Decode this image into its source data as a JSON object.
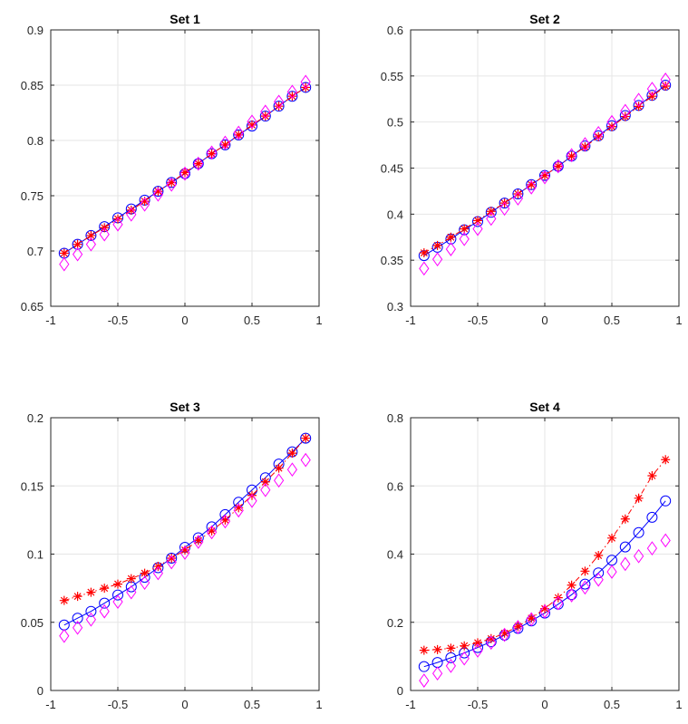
{
  "colors": {
    "series1": "#0000ff",
    "series2": "#ff0000",
    "series3": "#ff00ff",
    "grid": "#e6e6e6",
    "axis": "#262626"
  },
  "chart_data": [
    {
      "type": "line",
      "title": "Set 1",
      "xlabel": "",
      "ylabel": "",
      "xlim": [
        -1,
        1
      ],
      "ylim": [
        0.65,
        0.9
      ],
      "xticks": [
        -1,
        -0.5,
        0,
        0.5,
        1
      ],
      "xtick_labels": [
        "-1",
        "-0.5",
        "0",
        "0.5",
        "1"
      ],
      "yticks": [
        0.65,
        0.7,
        0.75,
        0.8,
        0.85,
        0.9
      ],
      "ytick_labels": [
        "0.65",
        "0.7",
        "0.75",
        "0.8",
        "0.85",
        "0.9"
      ],
      "grid": true,
      "x": [
        -0.9,
        -0.8,
        -0.7,
        -0.6,
        -0.5,
        -0.4,
        -0.3,
        -0.2,
        -0.1,
        0,
        0.1,
        0.2,
        0.3,
        0.4,
        0.5,
        0.6,
        0.7,
        0.8,
        0.9
      ],
      "series": [
        {
          "marker": "circle",
          "line": "solid",
          "color": "#0000ff",
          "values": [
            0.698,
            0.706,
            0.714,
            0.722,
            0.73,
            0.738,
            0.746,
            0.754,
            0.762,
            0.77,
            0.779,
            0.788,
            0.796,
            0.805,
            0.813,
            0.822,
            0.831,
            0.84,
            0.848
          ]
        },
        {
          "marker": "asterisk",
          "line": "dashdot",
          "color": "#ff0000",
          "values": [
            0.698,
            0.706,
            0.714,
            0.721,
            0.729,
            0.737,
            0.745,
            0.754,
            0.762,
            0.771,
            0.779,
            0.788,
            0.796,
            0.805,
            0.814,
            0.822,
            0.831,
            0.84,
            0.848
          ]
        },
        {
          "marker": "diamond",
          "line": "none",
          "color": "#ff00ff",
          "values": [
            0.688,
            0.697,
            0.706,
            0.715,
            0.724,
            0.733,
            0.742,
            0.751,
            0.76,
            0.77,
            0.779,
            0.789,
            0.798,
            0.807,
            0.817,
            0.826,
            0.835,
            0.844,
            0.853
          ]
        }
      ]
    },
    {
      "type": "line",
      "title": "Set 2",
      "xlabel": "",
      "ylabel": "",
      "xlim": [
        -1,
        1
      ],
      "ylim": [
        0.3,
        0.6
      ],
      "xticks": [
        -1,
        -0.5,
        0,
        0.5,
        1
      ],
      "xtick_labels": [
        "-1",
        "-0.5",
        "0",
        "0.5",
        "1"
      ],
      "yticks": [
        0.3,
        0.35,
        0.4,
        0.45,
        0.5,
        0.55,
        0.6
      ],
      "ytick_labels": [
        "0.3",
        "0.35",
        "0.4",
        "0.45",
        "0.5",
        "0.55",
        "0.6"
      ],
      "grid": true,
      "x": [
        -0.9,
        -0.8,
        -0.7,
        -0.6,
        -0.5,
        -0.4,
        -0.3,
        -0.2,
        -0.1,
        0,
        0.1,
        0.2,
        0.3,
        0.4,
        0.5,
        0.6,
        0.7,
        0.8,
        0.9
      ],
      "series": [
        {
          "marker": "circle",
          "line": "solid",
          "color": "#0000ff",
          "values": [
            0.355,
            0.364,
            0.373,
            0.383,
            0.392,
            0.402,
            0.412,
            0.422,
            0.432,
            0.442,
            0.452,
            0.463,
            0.474,
            0.485,
            0.496,
            0.507,
            0.518,
            0.529,
            0.54
          ]
        },
        {
          "marker": "asterisk",
          "line": "dashdot",
          "color": "#ff0000",
          "values": [
            0.358,
            0.366,
            0.375,
            0.384,
            0.393,
            0.403,
            0.412,
            0.422,
            0.432,
            0.442,
            0.452,
            0.463,
            0.473,
            0.484,
            0.495,
            0.506,
            0.517,
            0.528,
            0.539
          ]
        },
        {
          "marker": "diamond",
          "line": "none",
          "color": "#ff00ff",
          "values": [
            0.341,
            0.351,
            0.362,
            0.373,
            0.384,
            0.395,
            0.406,
            0.417,
            0.429,
            0.44,
            0.452,
            0.464,
            0.476,
            0.488,
            0.5,
            0.512,
            0.524,
            0.536,
            0.546
          ]
        }
      ]
    },
    {
      "type": "line",
      "title": "Set 3",
      "xlabel": "",
      "ylabel": "",
      "xlim": [
        -1,
        1
      ],
      "ylim": [
        0,
        0.2
      ],
      "xticks": [
        -1,
        -0.5,
        0,
        0.5,
        1
      ],
      "xtick_labels": [
        "-1",
        "-0.5",
        "0",
        "0.5",
        "1"
      ],
      "yticks": [
        0,
        0.05,
        0.1,
        0.15,
        0.2
      ],
      "ytick_labels": [
        "0",
        "0.05",
        "0.1",
        "0.15",
        "0.2"
      ],
      "grid": true,
      "x": [
        -0.9,
        -0.8,
        -0.7,
        -0.6,
        -0.5,
        -0.4,
        -0.3,
        -0.2,
        -0.1,
        0,
        0.1,
        0.2,
        0.3,
        0.4,
        0.5,
        0.6,
        0.7,
        0.8,
        0.9
      ],
      "series": [
        {
          "marker": "circle",
          "line": "solid",
          "color": "#0000ff",
          "values": [
            0.048,
            0.053,
            0.058,
            0.064,
            0.07,
            0.076,
            0.083,
            0.09,
            0.097,
            0.105,
            0.112,
            0.12,
            0.129,
            0.138,
            0.147,
            0.156,
            0.166,
            0.175,
            0.185
          ]
        },
        {
          "marker": "asterisk",
          "line": "dashdot",
          "color": "#ff0000",
          "values": [
            0.066,
            0.069,
            0.072,
            0.075,
            0.078,
            0.082,
            0.086,
            0.091,
            0.097,
            0.103,
            0.11,
            0.117,
            0.125,
            0.134,
            0.143,
            0.153,
            0.163,
            0.174,
            0.185
          ]
        },
        {
          "marker": "diamond",
          "line": "none",
          "color": "#ff00ff",
          "values": [
            0.04,
            0.046,
            0.052,
            0.058,
            0.065,
            0.072,
            0.079,
            0.086,
            0.094,
            0.101,
            0.109,
            0.116,
            0.124,
            0.132,
            0.139,
            0.147,
            0.154,
            0.162,
            0.169
          ]
        }
      ]
    },
    {
      "type": "line",
      "title": "Set 4",
      "xlabel": "",
      "ylabel": "",
      "xlim": [
        -1,
        1
      ],
      "ylim": [
        0,
        0.8
      ],
      "xticks": [
        -1,
        -0.5,
        0,
        0.5,
        1
      ],
      "xtick_labels": [
        "-1",
        "-0.5",
        "0",
        "0.5",
        "1"
      ],
      "yticks": [
        0,
        0.2,
        0.4,
        0.6,
        0.8
      ],
      "ytick_labels": [
        "0",
        "0.2",
        "0.4",
        "0.6",
        "0.8"
      ],
      "grid": true,
      "x": [
        -0.9,
        -0.8,
        -0.7,
        -0.6,
        -0.5,
        -0.4,
        -0.3,
        -0.2,
        -0.1,
        0,
        0.1,
        0.2,
        0.3,
        0.4,
        0.5,
        0.6,
        0.7,
        0.8,
        0.9
      ],
      "series": [
        {
          "marker": "circle",
          "line": "solid",
          "color": "#0000ff",
          "values": [
            0.07,
            0.082,
            0.096,
            0.11,
            0.126,
            0.143,
            0.162,
            0.182,
            0.204,
            0.227,
            0.253,
            0.281,
            0.312,
            0.345,
            0.382,
            0.421,
            0.463,
            0.508,
            0.556
          ]
        },
        {
          "marker": "asterisk",
          "line": "dashdot",
          "color": "#ff0000",
          "values": [
            0.118,
            0.12,
            0.124,
            0.131,
            0.14,
            0.152,
            0.168,
            0.188,
            0.212,
            0.24,
            0.272,
            0.309,
            0.35,
            0.396,
            0.447,
            0.503,
            0.564,
            0.63,
            0.677
          ]
        },
        {
          "marker": "diamond",
          "line": "none",
          "color": "#ff00ff",
          "values": [
            0.029,
            0.05,
            0.072,
            0.094,
            0.117,
            0.14,
            0.163,
            0.186,
            0.209,
            0.232,
            0.256,
            0.279,
            0.302,
            0.325,
            0.348,
            0.371,
            0.394,
            0.417,
            0.44
          ]
        }
      ]
    }
  ]
}
